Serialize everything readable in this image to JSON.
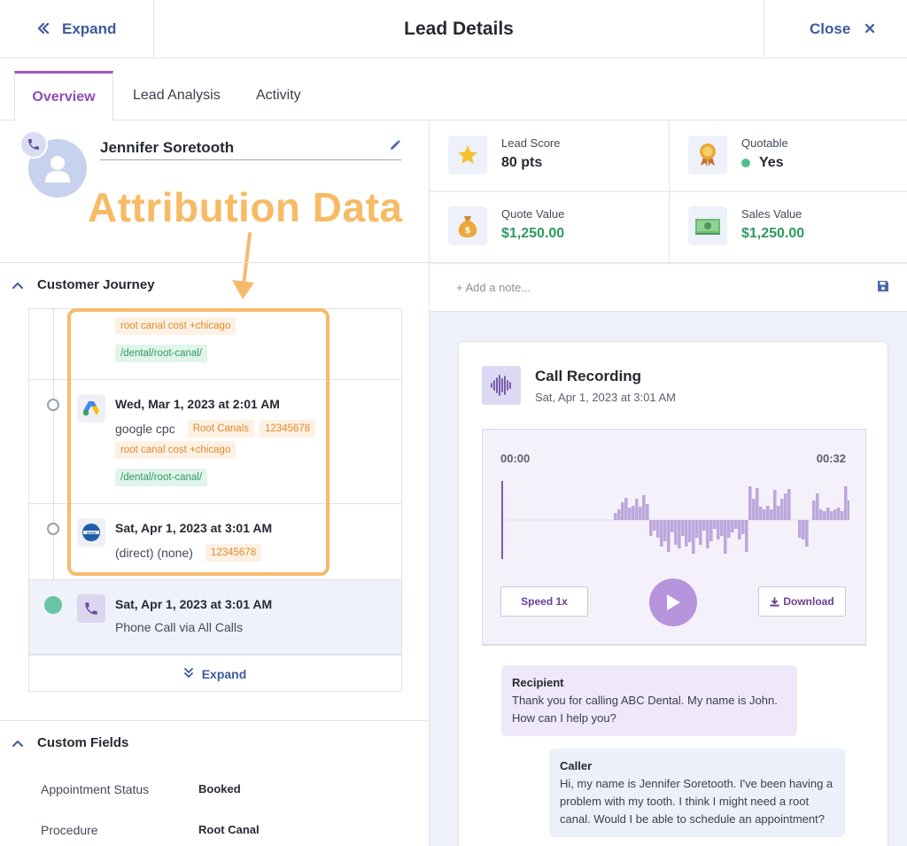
{
  "header": {
    "expand_label": "Expand",
    "title": "Lead Details",
    "close_label": "Close"
  },
  "tabs": [
    {
      "label": "Overview",
      "active": true
    },
    {
      "label": "Lead Analysis",
      "active": false
    },
    {
      "label": "Activity",
      "active": false
    }
  ],
  "lead": {
    "name": "Jennifer Soretooth"
  },
  "annotation": {
    "text": "Attribution Data"
  },
  "journey": {
    "title": "Customer Journey",
    "first_partial": {
      "tags_orange": [
        "root canal cost +chicago"
      ],
      "tags_green": [
        "/dental/root-canal/"
      ]
    },
    "entries": [
      {
        "date": "Wed, Mar 1, 2023 at 2:01 AM",
        "source": "google cpc",
        "tags_orange_inline": [
          "Root Canals",
          "12345678"
        ],
        "keyword": "root canal cost +chicago",
        "landing": "/dental/root-canal/",
        "icon": "google-ads-icon"
      },
      {
        "date": "Sat, Apr 1, 2023 at 3:01 AM",
        "source": "(direct) (none)",
        "tags_orange_inline": [
          "12345678"
        ],
        "icon": "website-icon"
      },
      {
        "date": "Sat, Apr 1, 2023 at 3:01 AM",
        "source": "Phone Call via All Calls",
        "icon": "phone-icon"
      }
    ],
    "expand_label": "Expand"
  },
  "custom_fields": {
    "title": "Custom Fields",
    "rows": [
      {
        "label": "Appointment Status",
        "value": "Booked"
      },
      {
        "label": "Procedure",
        "value": "Root Canal"
      }
    ]
  },
  "metrics": {
    "lead_score": {
      "label": "Lead Score",
      "value": "80 pts"
    },
    "quotable": {
      "label": "Quotable",
      "value": "Yes",
      "status_color": "#53c08a"
    },
    "quote_value": {
      "label": "Quote Value",
      "value": "$1,250.00"
    },
    "sales_value": {
      "label": "Sales Value",
      "value": "$1,250.00"
    }
  },
  "note": {
    "placeholder": "+ Add a note..."
  },
  "recording": {
    "title": "Call Recording",
    "date": "Sat, Apr 1, 2023 at 3:01 AM",
    "time_start": "00:00",
    "time_end": "00:32",
    "speed_label": "Speed 1x",
    "download_label": "Download",
    "waveform": [
      0,
      0,
      0,
      0,
      0,
      0,
      0,
      0,
      0,
      0,
      0,
      0,
      0,
      0,
      0,
      0,
      0,
      0,
      0,
      0,
      0,
      0,
      0,
      0,
      0,
      0,
      0,
      0,
      0,
      0,
      0,
      0,
      8,
      12,
      20,
      25,
      14,
      16,
      24,
      15,
      28,
      18,
      -18,
      -12,
      -20,
      -30,
      -24,
      -36,
      -14,
      -28,
      -32,
      -18,
      -30,
      -25,
      -38,
      -20,
      -28,
      -12,
      -32,
      -24,
      -10,
      -22,
      -18,
      -38,
      -20,
      -14,
      -10,
      -22,
      -16,
      -36,
      38,
      24,
      36,
      15,
      12,
      16,
      12,
      34,
      16,
      24,
      30,
      35,
      0,
      0,
      -20,
      -22,
      -30,
      0,
      22,
      30,
      12,
      10,
      14,
      10,
      12,
      14,
      10,
      38,
      22,
      0,
      -14,
      -22
    ]
  },
  "transcript": [
    {
      "speaker": "Recipient",
      "text": "Thank you for calling ABC Dental. My name is John. How can I help you?"
    },
    {
      "speaker": "Caller",
      "text": "Hi, my name is Jennifer Soretooth. I've been having a problem with my tooth. I think I might need a root canal. Would I be able to schedule an appointment?"
    }
  ]
}
